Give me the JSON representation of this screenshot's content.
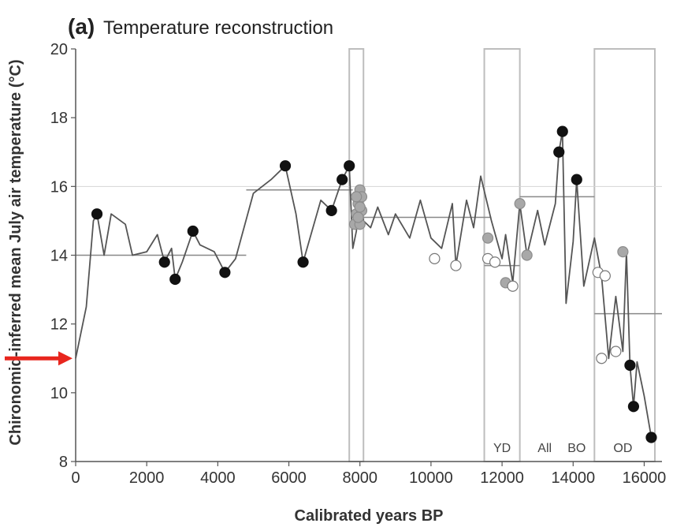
{
  "chart_data": {
    "type": "line",
    "panel_letter": "(a)",
    "title": "Temperature reconstruction",
    "xlabel": "Calibrated years BP",
    "ylabel": "Chironomid-inferred mean July air temperature (°C)",
    "xlim": [
      0,
      16500
    ],
    "ylim": [
      8,
      20
    ],
    "xticks": [
      0,
      2000,
      4000,
      6000,
      8000,
      10000,
      12000,
      14000,
      16000
    ],
    "yticks": [
      8,
      10,
      12,
      14,
      16,
      18,
      20
    ],
    "grid": false,
    "reference_line": {
      "y": 16
    },
    "arrow_marker": {
      "y": 11,
      "color": "#e8261e"
    },
    "series": [
      {
        "values": [
          [
            0,
            11.0
          ],
          [
            300,
            12.5
          ],
          [
            500,
            15.0
          ],
          [
            600,
            15.2
          ],
          [
            800,
            14.0
          ],
          [
            1000,
            15.2
          ],
          [
            1400,
            14.9
          ],
          [
            1600,
            14.0
          ],
          [
            2000,
            14.1
          ],
          [
            2300,
            14.6
          ],
          [
            2500,
            13.8
          ],
          [
            2700,
            14.2
          ],
          [
            2800,
            13.3
          ],
          [
            3000,
            13.8
          ],
          [
            3300,
            14.7
          ],
          [
            3500,
            14.3
          ],
          [
            3900,
            14.1
          ],
          [
            4200,
            13.5
          ],
          [
            4500,
            13.9
          ],
          [
            5000,
            15.8
          ],
          [
            5500,
            16.2
          ],
          [
            5900,
            16.6
          ],
          [
            6200,
            15.2
          ],
          [
            6400,
            13.8
          ],
          [
            6900,
            15.6
          ],
          [
            7200,
            15.3
          ],
          [
            7500,
            16.2
          ],
          [
            7700,
            16.6
          ],
          [
            7800,
            14.2
          ],
          [
            7900,
            14.7
          ],
          [
            8000,
            15.8
          ],
          [
            8100,
            15.0
          ],
          [
            8300,
            14.8
          ],
          [
            8500,
            15.4
          ],
          [
            8800,
            14.6
          ],
          [
            9000,
            15.2
          ],
          [
            9400,
            14.5
          ],
          [
            9700,
            15.6
          ],
          [
            10000,
            14.5
          ],
          [
            10300,
            14.2
          ],
          [
            10600,
            15.5
          ],
          [
            10700,
            13.7
          ],
          [
            11000,
            15.6
          ],
          [
            11200,
            14.8
          ],
          [
            11400,
            16.3
          ],
          [
            11700,
            15.0
          ],
          [
            12000,
            13.9
          ],
          [
            12100,
            14.6
          ],
          [
            12300,
            13.2
          ],
          [
            12500,
            15.5
          ],
          [
            12700,
            14.0
          ],
          [
            13000,
            15.3
          ],
          [
            13200,
            14.3
          ],
          [
            13500,
            15.5
          ],
          [
            13600,
            17.0
          ],
          [
            13700,
            17.6
          ],
          [
            13800,
            12.6
          ],
          [
            14000,
            14.4
          ],
          [
            14100,
            16.2
          ],
          [
            14300,
            13.1
          ],
          [
            14600,
            14.5
          ],
          [
            14800,
            13.4
          ],
          [
            15000,
            11.0
          ],
          [
            15200,
            12.8
          ],
          [
            15400,
            11.2
          ],
          [
            15500,
            14.1
          ],
          [
            15600,
            10.8
          ],
          [
            15700,
            9.6
          ],
          [
            15800,
            10.9
          ],
          [
            16000,
            9.9
          ],
          [
            16200,
            8.7
          ]
        ]
      }
    ],
    "points": {
      "black": [
        [
          600,
          15.2
        ],
        [
          2500,
          13.8
        ],
        [
          2800,
          13.3
        ],
        [
          3300,
          14.7
        ],
        [
          4200,
          13.5
        ],
        [
          5900,
          16.6
        ],
        [
          6400,
          13.8
        ],
        [
          7200,
          15.3
        ],
        [
          7500,
          16.2
        ],
        [
          7700,
          16.6
        ],
        [
          13600,
          17.0
        ],
        [
          13700,
          17.6
        ],
        [
          14100,
          16.2
        ],
        [
          15600,
          10.8
        ],
        [
          15700,
          9.6
        ],
        [
          16200,
          8.7
        ]
      ],
      "grey": [
        [
          7900,
          15.2
        ],
        [
          7950,
          15.5
        ],
        [
          8000,
          15.9
        ],
        [
          8050,
          15.3
        ],
        [
          7850,
          14.9
        ],
        [
          8000,
          14.9
        ],
        [
          7950,
          15.1
        ],
        [
          8050,
          15.7
        ],
        [
          7900,
          15.7
        ],
        [
          8000,
          15.4
        ],
        [
          11600,
          14.5
        ],
        [
          12100,
          13.2
        ],
        [
          12500,
          15.5
        ],
        [
          12700,
          14.0
        ],
        [
          15400,
          14.1
        ]
      ],
      "open": [
        [
          10100,
          13.9
        ],
        [
          10700,
          13.7
        ],
        [
          11600,
          13.9
        ],
        [
          11800,
          13.8
        ],
        [
          12300,
          13.1
        ],
        [
          14700,
          13.5
        ],
        [
          14800,
          11.0
        ],
        [
          14900,
          13.4
        ],
        [
          15200,
          11.2
        ]
      ]
    },
    "mean_levels": [
      {
        "from": 0,
        "to": 4800,
        "y": 14.0
      },
      {
        "from": 4800,
        "to": 7800,
        "y": 15.9
      },
      {
        "from": 8100,
        "to": 11700,
        "y": 15.1
      },
      {
        "from": 11500,
        "to": 12500,
        "y": 13.7
      },
      {
        "from": 12500,
        "to": 14600,
        "y": 15.7
      },
      {
        "from": 14600,
        "to": 16500,
        "y": 12.3
      }
    ],
    "period_boxes": [
      {
        "from": 7700,
        "to": 8100,
        "label": ""
      },
      {
        "from": 11500,
        "to": 12500,
        "label": "YD"
      },
      {
        "from": 14600,
        "to": 16300,
        "label": "OD"
      }
    ],
    "period_labels": [
      {
        "x": 12000,
        "label": "YD"
      },
      {
        "x": 13200,
        "label": "All"
      },
      {
        "x": 14100,
        "label": "BO"
      },
      {
        "x": 15400,
        "label": "OD"
      }
    ]
  }
}
